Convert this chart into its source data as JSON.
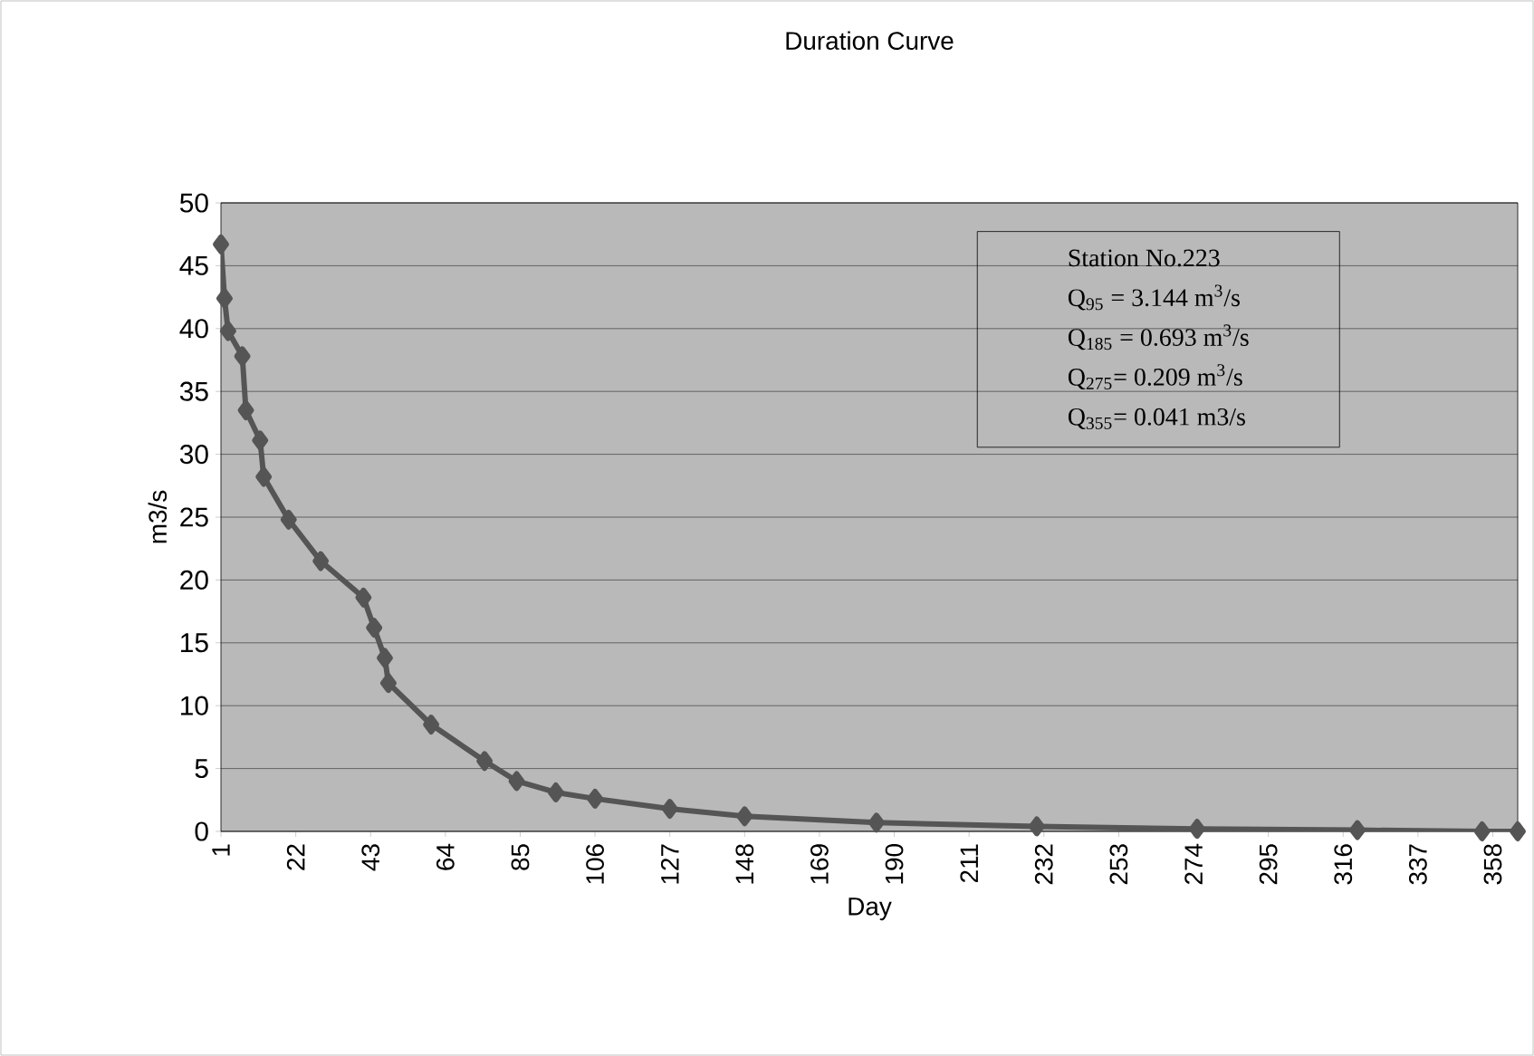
{
  "chart_data": {
    "type": "line",
    "title": "Duration Curve",
    "xlabel": "Day",
    "ylabel": "m3/s",
    "x": [
      1,
      2,
      3,
      7,
      8,
      12,
      13,
      20,
      29,
      41,
      44,
      47,
      48,
      60,
      75,
      84,
      95,
      106,
      127,
      148,
      185,
      230,
      275,
      320,
      355,
      365
    ],
    "series": [
      {
        "color": "#555555",
        "values": [
          46.7,
          42.4,
          39.8,
          37.8,
          33.5,
          31.1,
          28.2,
          24.8,
          21.5,
          18.6,
          16.2,
          13.8,
          11.8,
          8.5,
          5.6,
          4.0,
          3.1,
          2.6,
          1.8,
          1.2,
          0.7,
          0.4,
          0.2,
          0.1,
          0,
          0
        ]
      }
    ],
    "xlim": [
      1,
      365
    ],
    "xticks": [
      1,
      22,
      43,
      64,
      85,
      106,
      127,
      148,
      169,
      190,
      211,
      232,
      253,
      274,
      295,
      316,
      337,
      358
    ],
    "ylim": [
      0,
      50
    ],
    "yticks": [
      0,
      5,
      10,
      15,
      20,
      25,
      30,
      35,
      40,
      45,
      50
    ],
    "grid": "y",
    "marker": "diamond",
    "line_style": "solid",
    "annotations": [
      "Station No.223",
      "Q$_{95}$ = 3.144 m$^{3}$/s",
      "Q$_{185}$ = 0.693 m$^{3}$/s",
      "Q$_{275}$= 0.209 m$^{3}$/s",
      "Q$_{355}$= 0.041 m3/s"
    ]
  }
}
